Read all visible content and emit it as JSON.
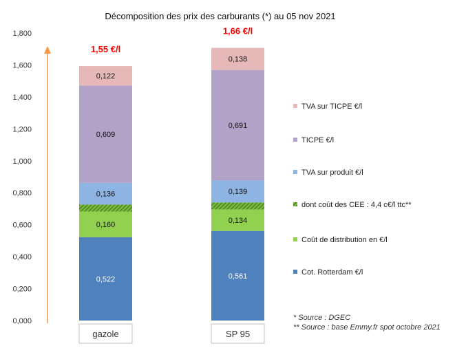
{
  "chart_data": {
    "type": "bar",
    "stacked": true,
    "title": "Décomposition des prix des carburants (*) au 05 nov 2021",
    "categories": [
      "gazole",
      "SP 95"
    ],
    "ylim": [
      0,
      1.8
    ],
    "ytick_step": 0.2,
    "ytick_labels": [
      "0,000",
      "0,200",
      "0,400",
      "0,600",
      "0,800",
      "1,000",
      "1,200",
      "1,400",
      "1,600",
      "1,800"
    ],
    "grid": false,
    "legend_position": "right",
    "totals": [
      "1,55 €/l",
      "1,66 €/l"
    ],
    "series": [
      {
        "name": "Cot. Rotterdam €/l",
        "color": "#4f81bd",
        "values": [
          0.522,
          0.561
        ],
        "labels": [
          "0,522",
          "0,561"
        ]
      },
      {
        "name": "Coût de distribution en €/l",
        "color": "#92d050",
        "values": [
          0.16,
          0.134
        ],
        "labels": [
          "0,160",
          "0,134"
        ]
      },
      {
        "name": "dont coût des CEE : 4,4 c€/l ttc**",
        "color": "#76b83a",
        "hatched": true,
        "values": [
          0.044,
          0.044
        ]
      },
      {
        "name": "TVA sur produit €/l",
        "color": "#8eb4e3",
        "values": [
          0.136,
          0.139
        ],
        "labels": [
          "0,136",
          "0,139"
        ]
      },
      {
        "name": "TICPE €/l",
        "color": "#b3a2c7",
        "values": [
          0.609,
          0.691
        ],
        "labels": [
          "0,609",
          "0,691"
        ]
      },
      {
        "name": "TVA sur TICPE €/l",
        "color": "#e6b9b8",
        "values": [
          0.122,
          0.138
        ],
        "labels": [
          "0,122",
          "0,138"
        ]
      }
    ],
    "annotations": {
      "total_color": "#ff0000",
      "arrow_color": "#f79646"
    }
  },
  "sources": [
    "* Source : DGEC",
    "** Source : base Emmy.fr spot octobre 2021"
  ]
}
